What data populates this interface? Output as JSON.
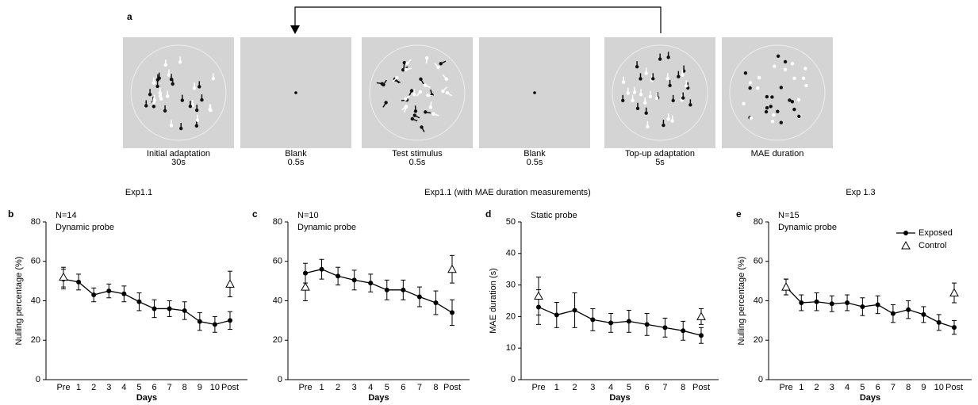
{
  "diagram": {
    "label": "a",
    "frames": [
      {
        "caption": "Initial adaptation",
        "duration": "30s"
      },
      {
        "caption": "Blank",
        "duration": "0.5s"
      },
      {
        "caption": "Test stimulus",
        "duration": "0.5s"
      },
      {
        "caption": "Blank",
        "duration": "0.5s"
      },
      {
        "caption": "Top-up adaptation",
        "duration": "5s"
      },
      {
        "caption": "MAE duration"
      }
    ]
  },
  "chart_data": [
    {
      "type": "line",
      "panel": "b",
      "title": "Exp1.1",
      "annotations": [
        "N=14",
        "Dynamic probe"
      ],
      "ylabel": "Nulling percentage (%)",
      "xlabel": "Days",
      "categories": [
        "Pre",
        "1",
        "2",
        "3",
        "4",
        "5",
        "6",
        "7",
        "8",
        "9",
        "10",
        "Post"
      ],
      "ylim": [
        0,
        80
      ],
      "yticks": [
        0,
        20,
        40,
        60,
        80
      ],
      "series": [
        {
          "color": "#000000",
          "marker": "circle",
          "values": [
            51,
            49.5,
            43,
            45,
            43.5,
            39.5,
            36,
            36,
            35,
            29.5,
            28,
            30
          ],
          "errors": [
            5,
            4,
            3.5,
            3.5,
            4,
            4.5,
            4.5,
            4,
            4.5,
            4.5,
            4,
            4.5
          ]
        },
        {
          "color": "#000000",
          "marker": "triangle",
          "values": [
            52,
            null,
            null,
            null,
            null,
            null,
            null,
            null,
            null,
            null,
            null,
            48.5
          ],
          "errors": [
            5,
            null,
            null,
            null,
            null,
            null,
            null,
            null,
            null,
            null,
            null,
            6.5
          ]
        }
      ]
    },
    {
      "type": "line",
      "panel": "c",
      "title": "Exp1.1 (with MAE duration measurements)",
      "annotations": [
        "N=10",
        "Dynamic probe"
      ],
      "xlabel": "Days",
      "categories": [
        "Pre",
        "1",
        "2",
        "3",
        "4",
        "5",
        "6",
        "7",
        "8",
        "Post"
      ],
      "ylim": [
        0,
        80
      ],
      "yticks": [
        0,
        20,
        40,
        60,
        80
      ],
      "series": [
        {
          "color": "#000000",
          "marker": "circle",
          "values": [
            54,
            56,
            52.5,
            50.5,
            49,
            45.5,
            45.5,
            42,
            39,
            34
          ],
          "errors": [
            5,
            5,
            4.5,
            5,
            4.5,
            5,
            5,
            5,
            6,
            6.5
          ]
        },
        {
          "color": "#000000",
          "marker": "triangle",
          "values": [
            47,
            null,
            null,
            null,
            null,
            null,
            null,
            null,
            null,
            56
          ],
          "errors": [
            7,
            null,
            null,
            null,
            null,
            null,
            null,
            null,
            null,
            7
          ]
        }
      ]
    },
    {
      "type": "line",
      "panel": "d",
      "annotations": [
        "Static probe"
      ],
      "ylabel": "MAE duration (s)",
      "xlabel": "Days",
      "categories": [
        "Pre",
        "1",
        "2",
        "3",
        "4",
        "5",
        "6",
        "7",
        "8",
        "Post"
      ],
      "ylim": [
        0,
        50
      ],
      "yticks": [
        0,
        10,
        20,
        30,
        40,
        50
      ],
      "series": [
        {
          "color": "#000000",
          "marker": "circle",
          "values": [
            23,
            20.5,
            22,
            19,
            18,
            18.5,
            17.5,
            16.5,
            15.5,
            14
          ],
          "errors": [
            5.5,
            4,
            5.5,
            3.5,
            3,
            3.5,
            3.5,
            3,
            3,
            2.5
          ]
        },
        {
          "color": "#000000",
          "marker": "triangle",
          "values": [
            26.5,
            null,
            null,
            null,
            null,
            null,
            null,
            null,
            null,
            20
          ],
          "errors": [
            6,
            null,
            null,
            null,
            null,
            null,
            null,
            null,
            null,
            2.5
          ]
        }
      ]
    },
    {
      "type": "line",
      "panel": "e",
      "title": "Exp 1.3",
      "annotations": [
        "N=15",
        "Dynamic probe"
      ],
      "ylabel": "Nulling percentage (%)",
      "xlabel": "Days",
      "legend": "upper right",
      "categories": [
        "Pre",
        "1",
        "2",
        "3",
        "4",
        "5",
        "6",
        "7",
        "8",
        "9",
        "10",
        "Post"
      ],
      "ylim": [
        0,
        80
      ],
      "yticks": [
        0,
        20,
        40,
        60,
        80
      ],
      "series": [
        {
          "name": "Exposed",
          "color": "#000000",
          "marker": "circle",
          "values": [
            47,
            39,
            39.5,
            38.5,
            39,
            37,
            38,
            33.5,
            35.5,
            33,
            29,
            26.5
          ],
          "errors": [
            4,
            4,
            4.5,
            4,
            4,
            4.5,
            4.5,
            4.5,
            4.5,
            4,
            4,
            3.5
          ]
        },
        {
          "name": "Control",
          "color": "#000000",
          "marker": "triangle",
          "values": [
            47,
            null,
            null,
            null,
            null,
            null,
            null,
            null,
            null,
            null,
            null,
            44
          ],
          "errors": [
            4,
            null,
            null,
            null,
            null,
            null,
            null,
            null,
            null,
            null,
            null,
            5
          ]
        }
      ]
    }
  ]
}
